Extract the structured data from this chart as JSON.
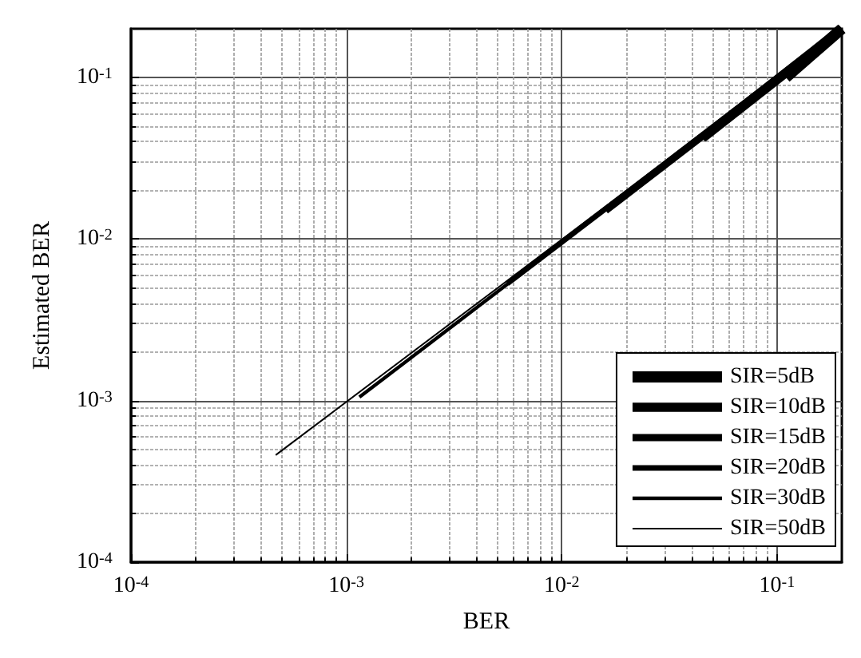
{
  "chart_data": {
    "type": "line",
    "xlabel": "BER",
    "ylabel": "Estimated BER",
    "log": "xy",
    "grid": true,
    "legend": "bottom right",
    "marker": "none",
    "line_style": "solid",
    "xlim": [
      0.0001,
      0.2
    ],
    "ylim": [
      0.0001,
      0.2
    ],
    "xticks": [
      {
        "value": 0.0001,
        "label": "10$^{-4}$"
      },
      {
        "value": 0.001,
        "label": "10$^{-3}$"
      },
      {
        "value": 0.01,
        "label": "10$^{-2}$"
      },
      {
        "value": 0.1,
        "label": "10$^{-1}$"
      }
    ],
    "yticks": [
      {
        "value": 0.0001,
        "label": "10$^{-4}$"
      },
      {
        "value": 0.001,
        "label": "10$^{-3}$"
      },
      {
        "value": 0.01,
        "label": "10$^{-2}$"
      },
      {
        "value": 0.1,
        "label": "10$^{-1}$"
      }
    ],
    "series": [
      {
        "name": "SIR=5dB",
        "color": "#000000",
        "x": [
          0.11,
          0.2
        ],
        "values": [
          0.1,
          0.2
        ]
      },
      {
        "name": "SIR=10dB",
        "color": "#000000",
        "x": [
          0.045,
          0.2
        ],
        "values": [
          0.042,
          0.2
        ]
      },
      {
        "name": "SIR=15dB",
        "color": "#000000",
        "x": [
          0.016,
          0.2
        ],
        "values": [
          0.015,
          0.2
        ]
      },
      {
        "name": "SIR=20dB",
        "color": "#000000",
        "x": [
          0.0056,
          0.2
        ],
        "values": [
          0.0053,
          0.2
        ]
      },
      {
        "name": "SIR=30dB",
        "color": "#000000",
        "x": [
          0.00115,
          0.2
        ],
        "values": [
          0.00105,
          0.2
        ]
      },
      {
        "name": "SIR=50dB",
        "color": "#000000",
        "x": [
          0.00047,
          0.2
        ],
        "values": [
          0.00046,
          0.2
        ]
      }
    ]
  }
}
